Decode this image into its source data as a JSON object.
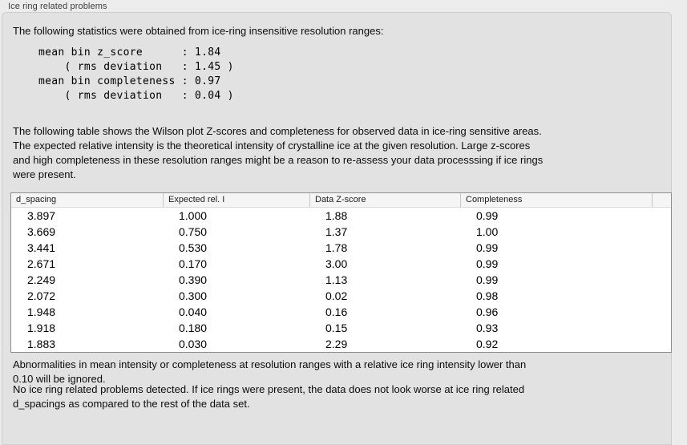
{
  "panel": {
    "title": "Ice ring related problems"
  },
  "intro": {
    "text": "The following statistics were obtained from ice-ring insensitive resolution ranges:"
  },
  "stats_block": {
    "lines": "mean bin z_score      : 1.84\n    ( rms deviation   : 1.45 )\nmean bin completeness : 0.97\n    ( rms deviation   : 0.04 )"
  },
  "table_description": "The following table shows the Wilson plot Z-scores and completeness for observed data in ice-ring sensitive areas.\nThe expected relative intensity is the theoretical intensity of crystalline ice at the given resolution. Large z-scores\nand high completeness in these resolution ranges might be a reason to re-assess your data processsing if ice rings\nwere present.",
  "table": {
    "columns": [
      "d_spacing",
      "Expected rel. I",
      "Data Z-score",
      "Completeness"
    ],
    "rows": [
      [
        "3.897",
        "1.000",
        "1.88",
        "0.99"
      ],
      [
        "3.669",
        "0.750",
        "1.37",
        "1.00"
      ],
      [
        "3.441",
        "0.530",
        "1.78",
        "0.99"
      ],
      [
        "2.671",
        "0.170",
        "3.00",
        "0.99"
      ],
      [
        "2.249",
        "0.390",
        "1.13",
        "0.99"
      ],
      [
        "2.072",
        "0.300",
        "0.02",
        "0.98"
      ],
      [
        "1.948",
        "0.040",
        "0.16",
        "0.96"
      ],
      [
        "1.918",
        "0.180",
        "0.15",
        "0.93"
      ],
      [
        "1.883",
        "0.030",
        "2.29",
        "0.92"
      ]
    ]
  },
  "notes": {
    "ignore_note": "Abnormalities in mean intensity or completeness at resolution ranges with a relative ice ring intensity lower than\n0.10 will be ignored.",
    "conclusion": "No ice ring related problems detected. If ice rings were present, the data does not look worse at ice ring related\nd_spacings as compared to the rest of the data set."
  },
  "colors": {
    "window_bg": "#ececec",
    "box_bg": "#e2e2e2",
    "box_border": "#cdcdcd",
    "table_border": "#8f8f8f",
    "header_bg": "#f5f5f5",
    "header_separator": "#c6c6c6",
    "row_bg": "#ffffff",
    "text": "#111111"
  }
}
